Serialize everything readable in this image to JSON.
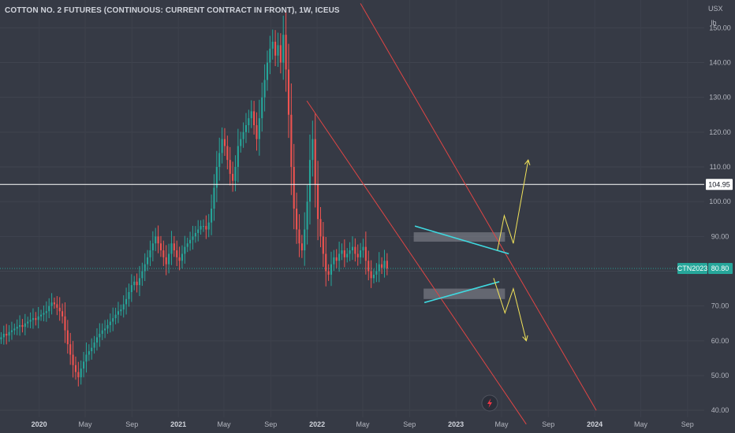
{
  "title": "COTTON NO. 2 FUTURES (CONTINUOUS: CURRENT CONTRACT IN FRONT), 1W, ICEUS",
  "currency_unit": "USX",
  "quantity_unit": "lb",
  "colors": {
    "background": "#363a45",
    "up": "#26a69a",
    "down": "#ef5350",
    "channel": "#e04545",
    "triangle": "#3fd9e0",
    "projection": "#f2e35a",
    "zone": "#8a8d96",
    "hline": "#ffffff"
  },
  "hline": {
    "value": 104.95,
    "label": "104.95"
  },
  "price_badge": {
    "symbol": "CTN2023",
    "value": "80.80",
    "price": 80.8
  },
  "chart_data": {
    "type": "candlestick",
    "title": "COTTON NO. 2 FUTURES (CONTINUOUS: CURRENT CONTRACT IN FRONT), 1W, ICEUS",
    "y_ticks": [
      40,
      50,
      60,
      70,
      80,
      90,
      100,
      110,
      120,
      130,
      140,
      150
    ],
    "y_tick_labels": [
      "40.00",
      "50.00",
      "60.00",
      "70.00",
      "80.00",
      "90.00",
      "100.00",
      "110.00",
      "120.00",
      "130.00",
      "140.00",
      "150.00"
    ],
    "ylim": [
      38,
      158
    ],
    "x_range": [
      "2019-09-20",
      "2024-10-15"
    ],
    "x_ticks": [
      {
        "date": "2020-01-01",
        "label": "2020",
        "bold": true
      },
      {
        "date": "2020-05-01",
        "label": "May",
        "bold": false
      },
      {
        "date": "2020-09-01",
        "label": "Sep",
        "bold": false
      },
      {
        "date": "2021-01-01",
        "label": "2021",
        "bold": true
      },
      {
        "date": "2021-05-01",
        "label": "May",
        "bold": false
      },
      {
        "date": "2021-09-01",
        "label": "Sep",
        "bold": false
      },
      {
        "date": "2022-01-01",
        "label": "2022",
        "bold": true
      },
      {
        "date": "2022-05-01",
        "label": "May",
        "bold": false
      },
      {
        "date": "2022-09-01",
        "label": "Sep",
        "bold": false
      },
      {
        "date": "2023-01-01",
        "label": "2023",
        "bold": true
      },
      {
        "date": "2023-05-01",
        "label": "May",
        "bold": false
      },
      {
        "date": "2023-09-01",
        "label": "Sep",
        "bold": false
      },
      {
        "date": "2024-01-01",
        "label": "2024",
        "bold": true
      },
      {
        "date": "2024-05-01",
        "label": "May",
        "bold": false
      },
      {
        "date": "2024-09-01",
        "label": "Sep",
        "bold": false
      }
    ],
    "candle_interval": "1W",
    "first_candle": "2019-09-23",
    "closes": [
      61,
      62,
      61.5,
      62.5,
      63,
      63.5,
      64,
      64.5,
      64,
      65,
      65.5,
      66,
      66.5,
      66,
      67,
      67.5,
      68,
      68.5,
      70,
      71,
      70.5,
      69.5,
      68.5,
      67,
      63,
      59,
      56,
      53,
      51,
      49.5,
      52,
      54,
      56,
      57,
      58,
      59.5,
      61,
      62,
      63,
      63.5,
      64.5,
      65.5,
      66.5,
      67.5,
      68.5,
      69,
      70.5,
      72,
      74,
      76,
      77,
      76,
      78,
      80,
      82,
      84,
      86,
      88,
      90,
      88,
      86,
      84,
      82,
      85,
      88,
      86,
      84,
      83,
      85,
      87,
      88,
      89,
      90,
      91,
      92,
      93,
      93,
      92,
      94,
      98,
      104,
      110,
      114,
      118,
      116,
      112,
      108,
      106,
      110,
      116,
      118,
      120,
      122,
      124,
      126,
      122,
      118,
      124,
      130,
      135,
      140,
      144,
      146,
      142,
      145,
      140,
      148,
      138,
      125,
      110,
      98,
      92,
      88,
      86,
      92,
      100,
      112,
      118,
      105,
      95,
      90,
      85,
      80,
      79,
      82,
      84,
      83,
      85,
      86,
      84,
      85,
      86,
      87,
      85,
      84,
      86,
      87,
      83,
      80,
      78,
      79,
      80,
      82,
      81,
      83,
      80.8
    ],
    "annotations": {
      "falling_channel_upper": [
        [
          "2022-04-25",
          157
        ],
        [
          "2024-01-05",
          40
        ]
      ],
      "falling_channel_lower": [
        [
          "2021-12-05",
          129
        ],
        [
          "2023-07-05",
          36
        ]
      ],
      "triangle_upper": [
        [
          "2022-09-15",
          93
        ],
        [
          "2023-05-20",
          85
        ]
      ],
      "triangle_lower": [
        [
          "2022-10-10",
          71
        ],
        [
          "2023-04-25",
          77
        ]
      ],
      "zone_upper": {
        "from": "2022-09-12",
        "to": "2023-05-10",
        "low": 88.5,
        "high": 91.2
      },
      "zone_lower": {
        "from": "2022-10-08",
        "to": "2023-05-10",
        "low": 72,
        "high": 75
      },
      "projection_up": [
        [
          "2023-04-20",
          86
        ],
        [
          "2023-05-08",
          96
        ],
        [
          "2023-06-01",
          88
        ],
        [
          "2023-07-10",
          112
        ]
      ],
      "projection_down": [
        [
          "2023-04-10",
          78
        ],
        [
          "2023-05-10",
          68
        ],
        [
          "2023-06-01",
          75
        ],
        [
          "2023-07-05",
          60
        ]
      ]
    }
  }
}
